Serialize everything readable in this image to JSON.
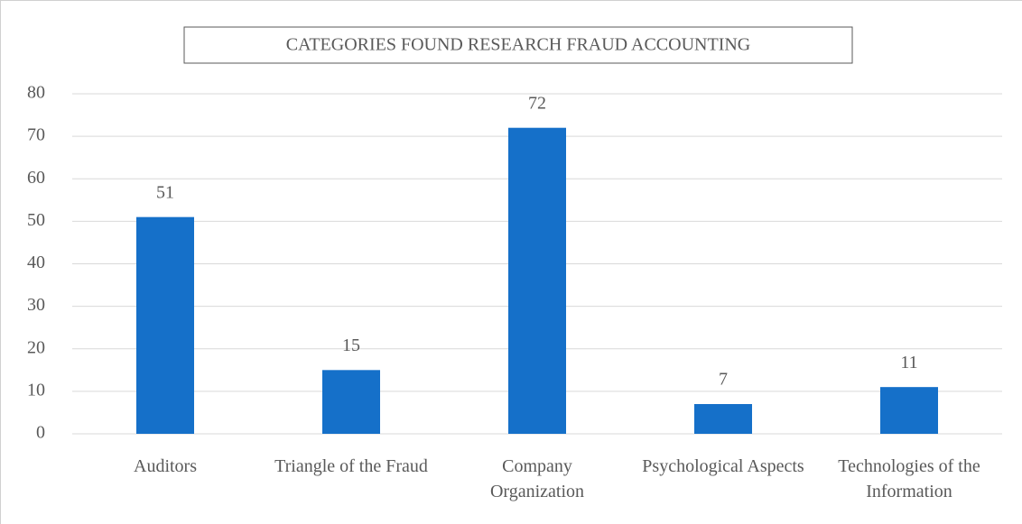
{
  "chart_data": {
    "type": "bar",
    "title": "CATEGORIES FOUND RESEARCH FRAUD ACCOUNTING",
    "categories": [
      "Auditors",
      "Triangle of the Fraud",
      "Company Organization",
      "Psychological Aspects",
      "Technologies of the Information"
    ],
    "values": [
      51,
      15,
      72,
      7,
      11
    ],
    "color": "#1570c9",
    "ylim": [
      0,
      80
    ],
    "yticks": [
      0,
      10,
      20,
      30,
      40,
      50,
      60,
      70,
      80
    ],
    "grid": true
  }
}
